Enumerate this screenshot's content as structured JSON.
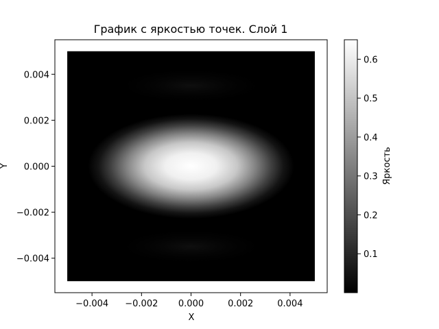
{
  "chart_data": {
    "type": "heatmap",
    "title": "График с яркостью точек. Слой 1",
    "xlabel": "X",
    "ylabel": "Y",
    "xlim": [
      -0.0055,
      0.0055
    ],
    "ylim": [
      -0.0055,
      0.0055
    ],
    "data_extent": [
      -0.005,
      0.005
    ],
    "xticks": [
      {
        "value": -0.004,
        "label": "−0.004"
      },
      {
        "value": -0.002,
        "label": "−0.002"
      },
      {
        "value": 0.0,
        "label": "0.000"
      },
      {
        "value": 0.002,
        "label": "0.002"
      },
      {
        "value": 0.004,
        "label": "0.004"
      }
    ],
    "yticks": [
      {
        "value": 0.004,
        "label": "0.004"
      },
      {
        "value": 0.002,
        "label": "0.002"
      },
      {
        "value": 0.0,
        "label": "0.000"
      },
      {
        "value": -0.002,
        "label": "−0.002"
      },
      {
        "value": -0.004,
        "label": "−0.004"
      }
    ],
    "colormap": "gray",
    "colorbar": {
      "label": "Яркость",
      "range": [
        0.0,
        0.65
      ],
      "ticks": [
        {
          "value": 0.1,
          "label": "0.1"
        },
        {
          "value": 0.2,
          "label": "0.2"
        },
        {
          "value": 0.3,
          "label": "0.3"
        },
        {
          "value": 0.4,
          "label": "0.4"
        },
        {
          "value": 0.5,
          "label": "0.5"
        },
        {
          "value": 0.6,
          "label": "0.6"
        }
      ]
    },
    "features": [
      {
        "name": "central-bright-spot",
        "x": 0.0,
        "y": 0.0,
        "peak": 0.65,
        "sigma_x": 0.0013,
        "sigma_y": 0.0006
      },
      {
        "name": "upper-faint-band",
        "y": 0.0035,
        "peak": 0.02
      },
      {
        "name": "lower-faint-band",
        "y": -0.0035,
        "peak": 0.02
      }
    ]
  },
  "colors": {
    "low": "#000000",
    "high": "#ffffff",
    "frame": "#000000"
  }
}
